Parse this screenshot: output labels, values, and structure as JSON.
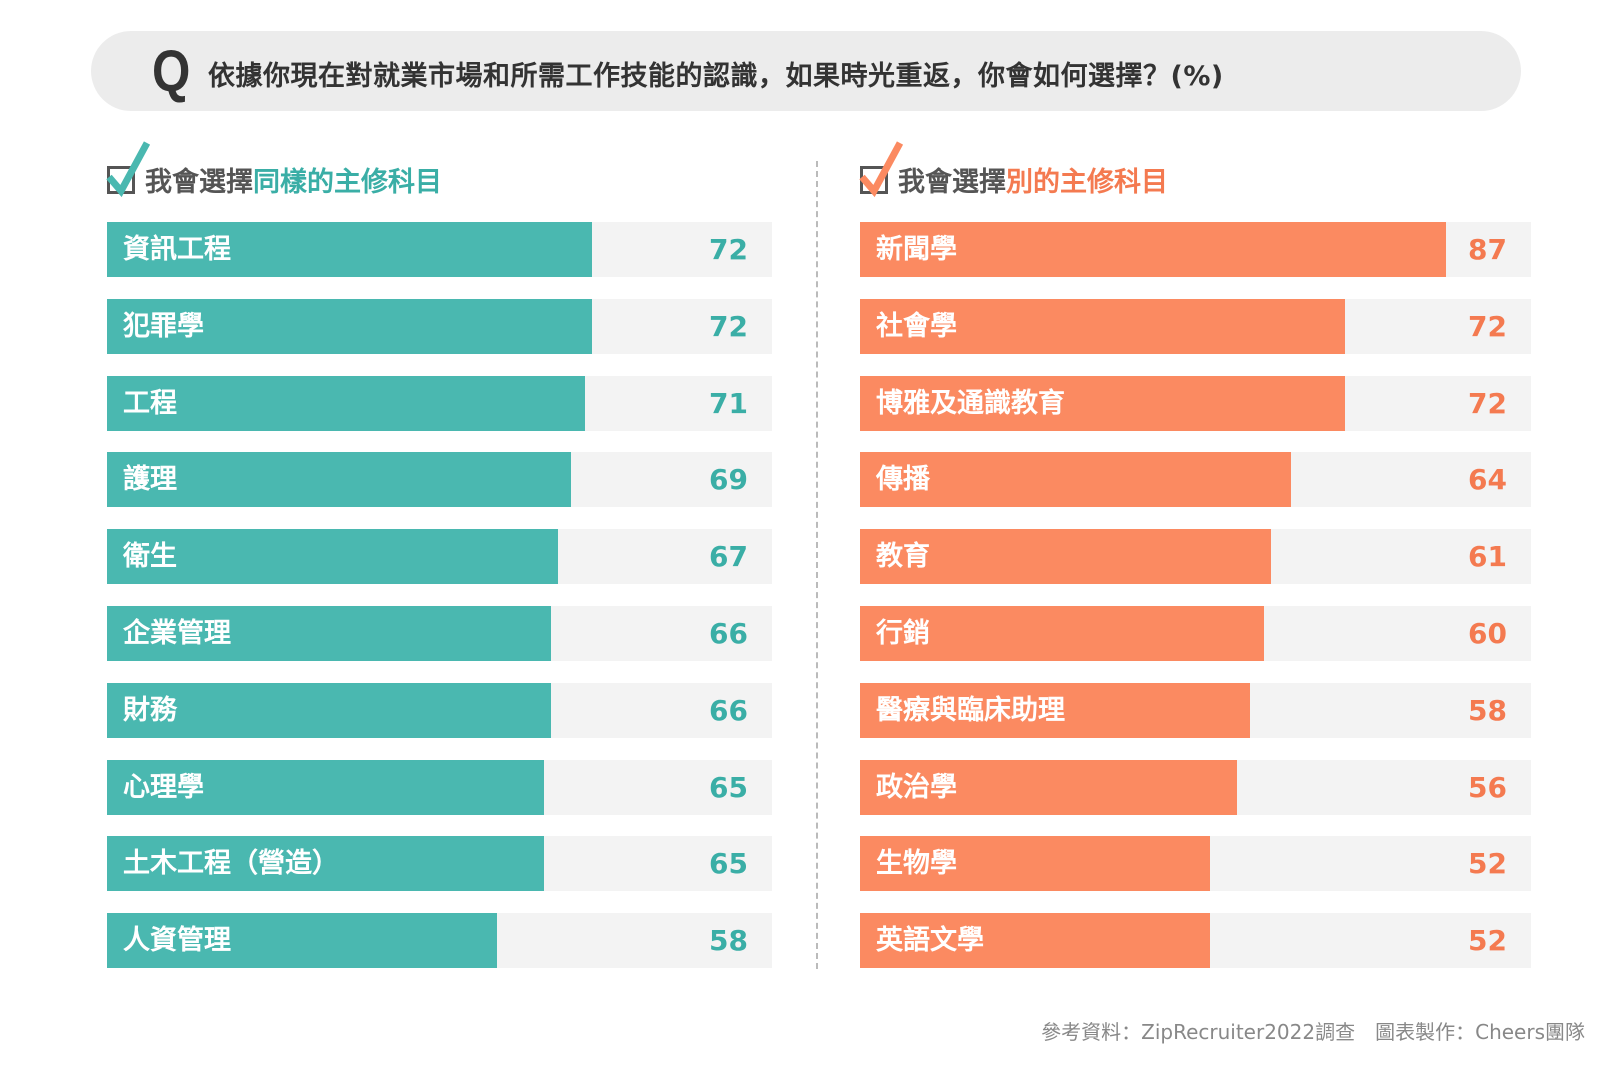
{
  "title": {
    "q": "Q",
    "text": "依據你現在對就業市場和所需工作技能的認識，如果時光重返，你會如何選擇？(%)"
  },
  "colors": {
    "left": "#4ab8b0",
    "left_text": "#3aaea6",
    "right": "#fb8a61",
    "right_text": "#f47a50",
    "track": "#f3f3f3"
  },
  "chart_data": [
    {
      "type": "bar",
      "orientation": "horizontal",
      "heading_prefix": "我會選擇",
      "heading_highlight": "同樣的主修科目",
      "icon": "checked-box-icon",
      "categories": [
        "資訊工程",
        "犯罪學",
        "工程",
        "護理",
        "衛生",
        "企業管理",
        "財務",
        "心理學",
        "土木工程（營造）",
        "人資管理"
      ],
      "values": [
        72,
        72,
        71,
        69,
        67,
        66,
        66,
        65,
        65,
        58
      ],
      "unit": "%"
    },
    {
      "type": "bar",
      "orientation": "horizontal",
      "heading_prefix": "我會選擇",
      "heading_highlight": "別的主修科目",
      "icon": "checked-box-icon",
      "categories": [
        "新聞學",
        "社會學",
        "博雅及通識教育",
        "傳播",
        "教育",
        "行銷",
        "醫療與臨床助理",
        "政治學",
        "生物學",
        "英語文學"
      ],
      "values": [
        87,
        72,
        72,
        64,
        61,
        60,
        58,
        56,
        52,
        52
      ],
      "unit": "%"
    }
  ],
  "footer": "參考資料：ZipRecruiter2022調查　圖表製作：Cheers團隊"
}
